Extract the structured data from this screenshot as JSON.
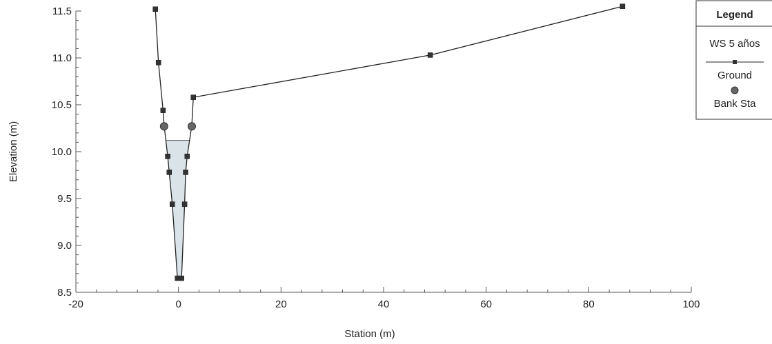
{
  "chart_data": {
    "type": "line",
    "title": "",
    "xlabel": "Station (m)",
    "ylabel": "Elevation (m)",
    "xlim": [
      -20,
      100
    ],
    "ylim": [
      8.5,
      11.5
    ],
    "x_ticks": [
      -20,
      0,
      20,
      40,
      60,
      80,
      100
    ],
    "y_ticks": [
      8.5,
      9.0,
      9.5,
      10.0,
      10.5,
      11.0,
      11.5
    ],
    "x_tick_labels": [
      "-20",
      "0",
      "20",
      "40",
      "60",
      "80",
      "100"
    ],
    "y_tick_labels": [
      "8.5",
      "9.0",
      "9.5",
      "10.0",
      "10.5",
      "11.0",
      "11.5"
    ],
    "grid": false,
    "legend": {
      "title": "Legend",
      "placement": "top-right",
      "entries": [
        "WS 5 años",
        "Ground",
        "Bank Sta"
      ]
    },
    "colors": {
      "water_fill": "#d9e3e8",
      "ground_line": "#222222",
      "bank_marker": "#666666"
    },
    "series": [
      {
        "name": "WS 5 años",
        "kind": "water-surface",
        "elevation": 10.12,
        "x": [
          -2.3,
          1.9
        ]
      },
      {
        "name": "Ground",
        "kind": "line-square-markers",
        "x": [
          -4.5,
          -3.9,
          -3.0,
          -2.8,
          -2.1,
          -1.8,
          -1.2,
          -0.2,
          0.6,
          1.2,
          1.4,
          1.7,
          2.6,
          2.9,
          49.1,
          86.6
        ],
        "y": [
          11.52,
          10.95,
          10.44,
          10.28,
          9.95,
          9.78,
          9.44,
          8.65,
          8.65,
          9.44,
          9.78,
          9.95,
          10.28,
          10.58,
          11.03,
          11.55
        ]
      },
      {
        "name": "Bank Sta",
        "kind": "circle-markers",
        "x": [
          -2.8,
          2.6
        ],
        "y": [
          10.27,
          10.27
        ]
      }
    ]
  }
}
